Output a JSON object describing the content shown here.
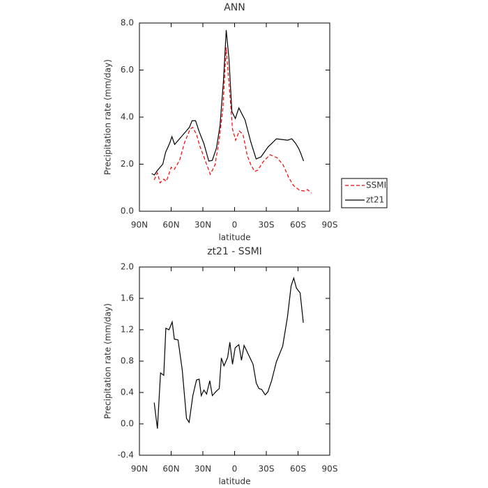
{
  "chart_data": [
    {
      "type": "line",
      "title": "ANN",
      "x_label": "latitude",
      "y_label": "Precipitation rate (mm/day)",
      "xlim": [
        90,
        -90
      ],
      "xticks": [
        {
          "value": 90,
          "label": "90N"
        },
        {
          "value": 60,
          "label": "60N"
        },
        {
          "value": 30,
          "label": "30N"
        },
        0,
        {
          "value": -30,
          "label": "30S"
        },
        {
          "value": -60,
          "label": "60S"
        },
        {
          "value": -90,
          "label": "90S"
        }
      ],
      "ylim": [
        0,
        8
      ],
      "yticks": [
        {
          "value": 0,
          "label": "0.0"
        },
        {
          "value": 2,
          "label": "2.0"
        },
        {
          "value": 4,
          "label": "4.0"
        },
        {
          "value": 6,
          "label": "6.0"
        },
        {
          "value": 8,
          "label": "8.0"
        }
      ],
      "legend": "right",
      "series": [
        {
          "name": "SSMI",
          "color": "#ff0000",
          "linestyle": "dashed",
          "x": [
            76,
            73,
            70.5,
            67,
            64.5,
            60,
            57,
            52,
            47.5,
            42,
            39.5,
            36,
            33,
            29,
            23,
            18.5,
            14.5,
            11,
            8,
            4.5,
            2,
            -1,
            -4.5,
            -8,
            -12,
            -15,
            -19,
            -22,
            -27,
            -33.5,
            -40,
            -46,
            -51,
            -55.5,
            -61.5,
            -66,
            -69,
            -72.5
          ],
          "values": [
            1.33,
            1.63,
            1.21,
            1.36,
            1.27,
            1.87,
            1.78,
            2.16,
            2.9,
            3.5,
            3.56,
            3.26,
            2.79,
            2.31,
            1.57,
            1.96,
            3.05,
            4.39,
            6.96,
            4.98,
            3.5,
            3.02,
            3.41,
            3.26,
            2.37,
            2.01,
            1.69,
            1.75,
            2.1,
            2.4,
            2.28,
            1.96,
            1.45,
            1.1,
            0.89,
            0.86,
            0.92,
            0.77
          ]
        },
        {
          "name": "zt21",
          "color": "#000000",
          "linestyle": "solid",
          "x": [
            78.4,
            75.8,
            73.2,
            67.9,
            65.3,
            61.3,
            59.3,
            56.7,
            52.1,
            46.8,
            42.8,
            40.2,
            36.9,
            33.6,
            29,
            24.4,
            21.1,
            17.1,
            13.8,
            10.5,
            7.9,
            5.3,
            2.6,
            -0.7,
            -4,
            -9.9,
            -15.2,
            -20.4,
            -25,
            -31.6,
            -39.6,
            -44.8,
            -50.1,
            -54.1,
            -57.4,
            -60.6,
            -62.6,
            -65.3
          ],
          "values": [
            1.6,
            1.54,
            1.72,
            2.0,
            2.5,
            2.9,
            3.17,
            2.84,
            3.08,
            3.35,
            3.56,
            3.85,
            3.85,
            3.4,
            2.87,
            2.13,
            2.16,
            2.7,
            3.64,
            5.57,
            7.7,
            6.46,
            4.24,
            3.94,
            4.39,
            3.88,
            2.96,
            2.22,
            2.31,
            2.73,
            3.08,
            3.05,
            3.02,
            3.08,
            2.9,
            2.67,
            2.46,
            2.13
          ]
        }
      ]
    },
    {
      "type": "line",
      "title": "zt21 - SSMI",
      "x_label": "latitude",
      "y_label": "Precipitation rate (mm/day)",
      "xlim": [
        90,
        -90
      ],
      "xticks": [
        {
          "value": 90,
          "label": "90N"
        },
        {
          "value": 60,
          "label": "60N"
        },
        {
          "value": 30,
          "label": "30N"
        },
        0,
        {
          "value": -30,
          "label": "30S"
        },
        {
          "value": -60,
          "label": "60S"
        },
        {
          "value": -90,
          "label": "90S"
        }
      ],
      "ylim": [
        -0.4,
        2
      ],
      "yticks": [
        -0.4,
        {
          "value": 0,
          "label": "0.0"
        },
        0.4,
        0.8,
        1.2,
        1.6,
        {
          "value": 2,
          "label": "2.0"
        }
      ],
      "color": "#000000",
      "x": [
        76,
        73,
        70,
        67,
        65,
        62,
        59,
        57,
        53.5,
        49.5,
        45.5,
        43,
        39.5,
        36,
        33.5,
        31.5,
        29,
        26.5,
        23.5,
        21,
        17,
        14.5,
        12.5,
        10,
        6.5,
        4.5,
        2,
        -0.5,
        -4,
        -6.5,
        -9,
        -12.5,
        -17.5,
        -20.5,
        -23,
        -25.5,
        -29,
        -31.5,
        -35,
        -39.5,
        -45.5,
        -50,
        -53.5,
        -56,
        -58.5,
        -62,
        -65
      ],
      "values": [
        0.27,
        -0.06,
        0.65,
        0.62,
        1.22,
        1.2,
        1.3,
        1.08,
        1.07,
        0.69,
        0.07,
        0.02,
        0.36,
        0.56,
        0.57,
        0.36,
        0.43,
        0.38,
        0.55,
        0.36,
        0.42,
        0.45,
        0.84,
        0.74,
        0.85,
        1.04,
        0.76,
        0.97,
        1.01,
        0.81,
        1.0,
        0.9,
        0.76,
        0.52,
        0.45,
        0.44,
        0.37,
        0.41,
        0.55,
        0.79,
        0.99,
        1.36,
        1.76,
        1.86,
        1.73,
        1.67,
        1.29
      ]
    }
  ]
}
